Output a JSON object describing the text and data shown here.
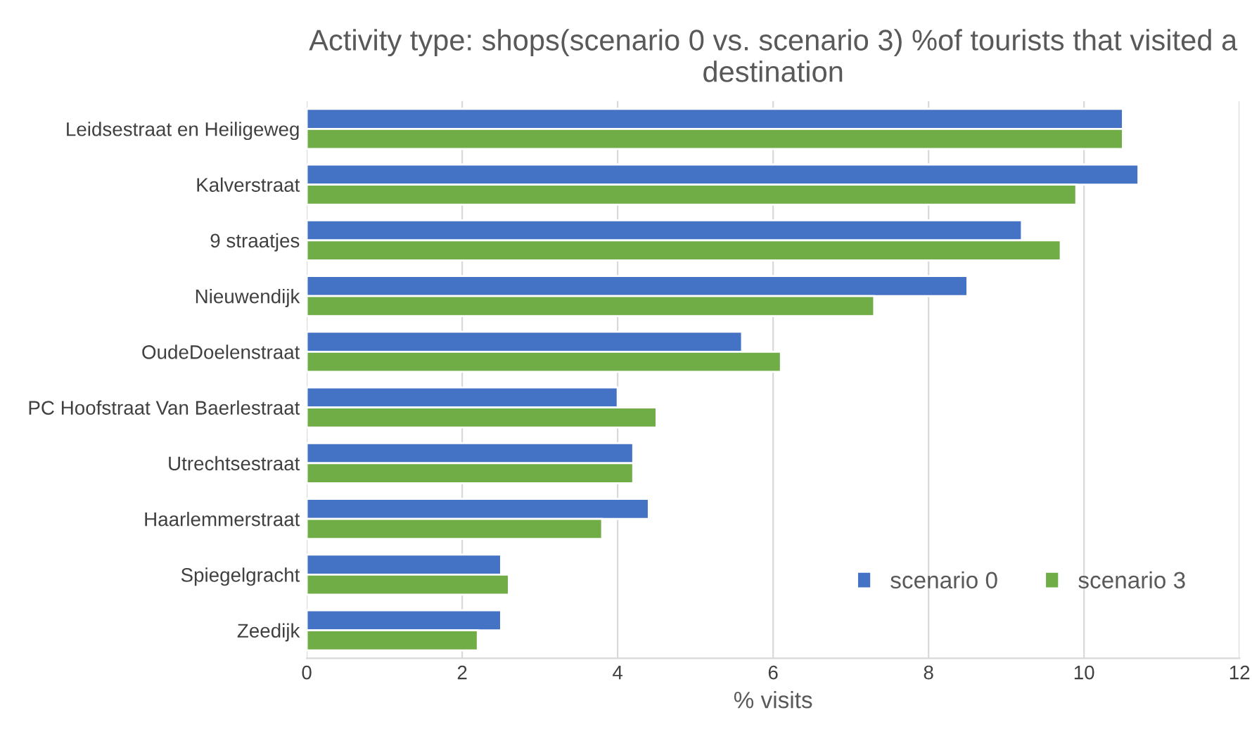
{
  "chart_data": {
    "type": "bar",
    "orientation": "horizontal",
    "title": "Activity type: shops(scenario 0 vs. scenario 3) %of tourists that visited a destination",
    "xlabel": "% visits",
    "categories": [
      "Leidsestraat en Heiligeweg",
      "Kalverstraat",
      "9 straatjes",
      "Nieuwendijk",
      "OudeDoelenstraat",
      "PC Hoofstraat Van Baerlestraat",
      "Utrechtsestraat",
      "Haarlemmerstraat",
      "Spiegelgracht",
      "Zeedijk"
    ],
    "series": [
      {
        "name": "scenario 0",
        "color": "#4472c4",
        "values": [
          10.5,
          10.7,
          9.2,
          8.5,
          5.6,
          4.0,
          4.2,
          4.4,
          2.5,
          2.5
        ]
      },
      {
        "name": "scenario 3",
        "color": "#70ad47",
        "values": [
          10.5,
          9.9,
          9.7,
          7.3,
          6.1,
          4.5,
          4.2,
          3.8,
          2.6,
          2.2
        ]
      }
    ],
    "xlim": [
      0,
      12
    ],
    "xticks": [
      0,
      2,
      4,
      6,
      8,
      10,
      12
    ],
    "grid": "x",
    "legend": "bottom right"
  }
}
